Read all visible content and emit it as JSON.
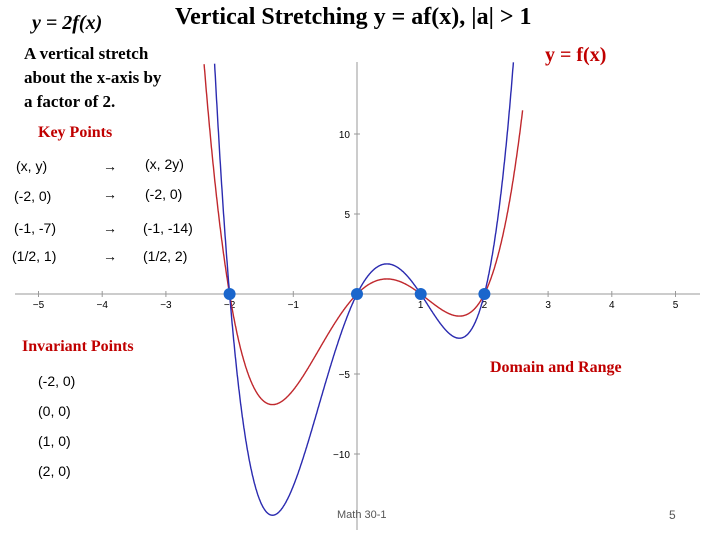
{
  "slide": {
    "title": "Vertical Stretching y = af(x),  |a| > 1",
    "label_2f": "y = 2f(x)",
    "label_f": "y = f(x)",
    "description": [
      "A vertical stretch",
      "about the x-axis by",
      "a factor of 2."
    ],
    "key_points_heading": "Key Points",
    "key_points": [
      {
        "orig": "(x, y)",
        "arrow": "→",
        "img": "(x, 2y)"
      },
      {
        "orig": "(-2, 0)",
        "arrow": "→",
        "img": "(-2, 0)"
      },
      {
        "orig": "(-1, -7)",
        "arrow": "→",
        "img": "(-1, -14)"
      },
      {
        "orig": "(1/2, 1)",
        "arrow": "→",
        "img": "(1/2, 2)"
      }
    ],
    "invariant_heading": "Invariant Points",
    "invariant_points": [
      "(-2, 0)",
      "(0, 0)",
      "(1, 0)",
      "(2, 0)"
    ],
    "domain_range_heading": "Domain and Range",
    "footer_course": "Math 30-1",
    "page_number": "5"
  },
  "graph": {
    "x_ticks": [
      "−5",
      "−4",
      "−3",
      "−2",
      "−1",
      "1",
      "2",
      "3",
      "4",
      "5"
    ],
    "y_ticks": [
      "10",
      "5",
      "−5",
      "−10"
    ],
    "invariant_x": [
      -2,
      0,
      1,
      2
    ],
    "colors": {
      "f": "#c0282d",
      "stretch": "#2b2bb0",
      "point": "#1a66cc",
      "label": "#c00000"
    }
  }
}
